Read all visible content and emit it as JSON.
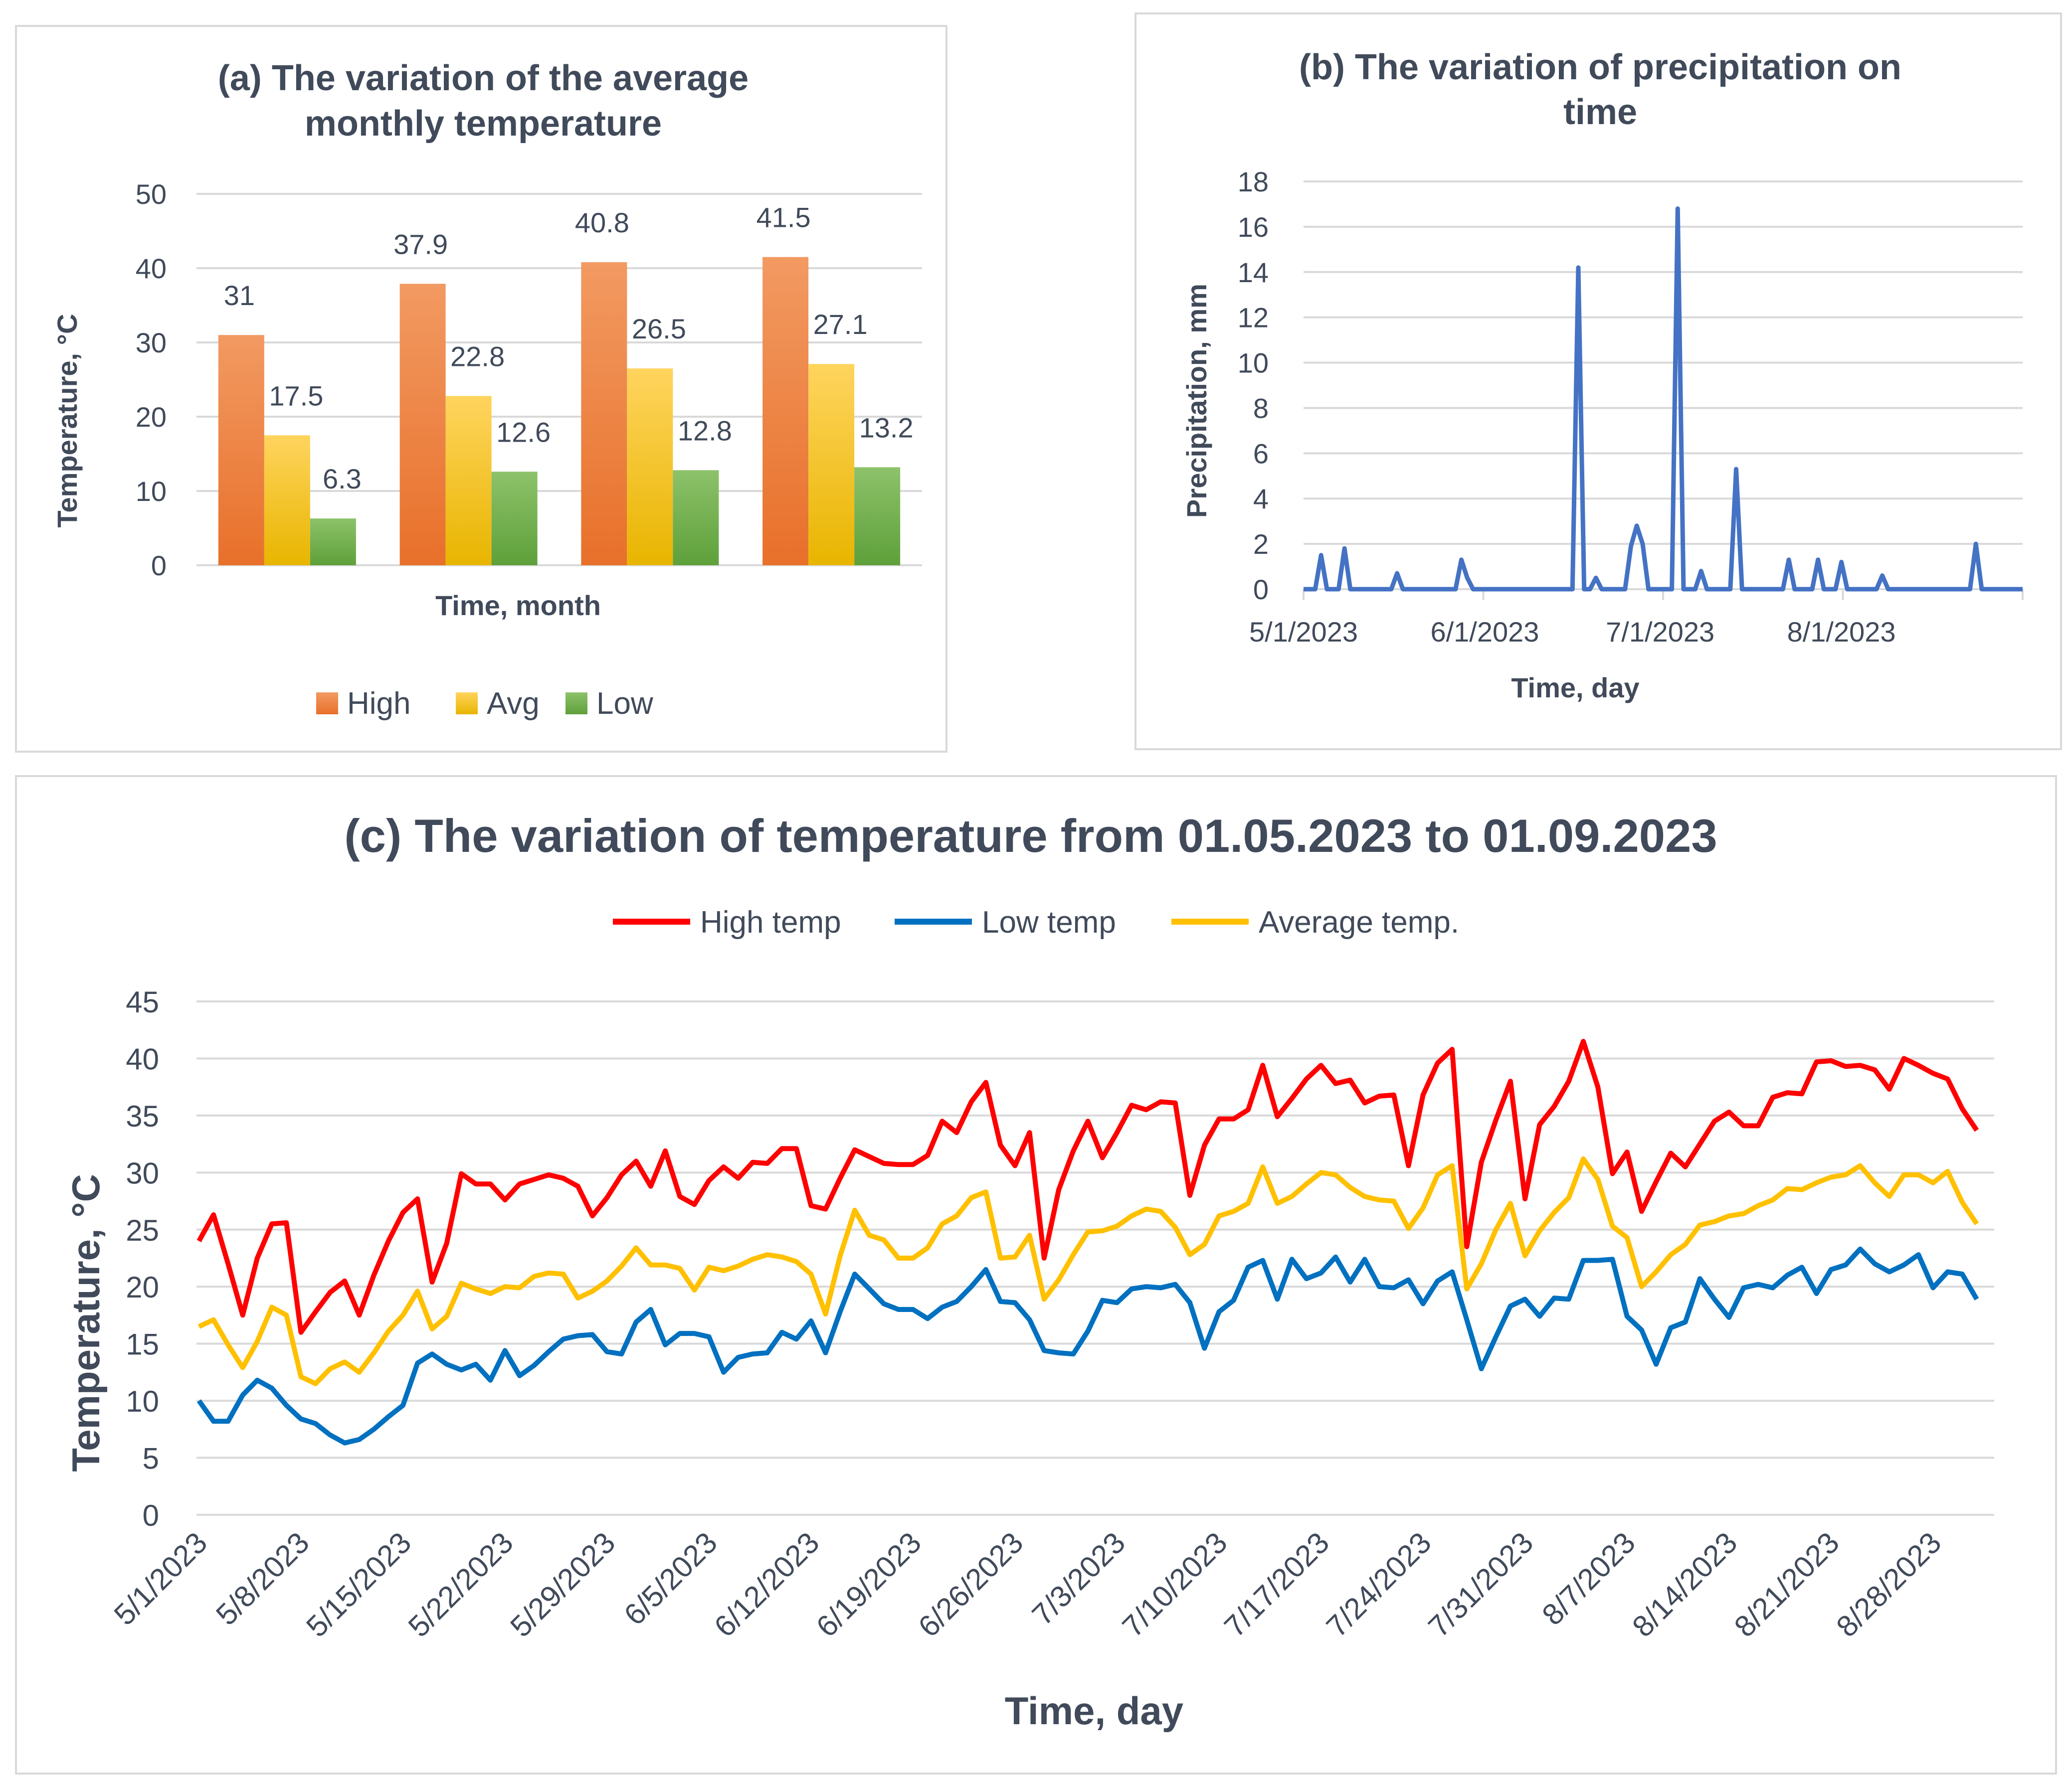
{
  "chart_data": [
    {
      "type": "bar",
      "title_lines": [
        "(a) The variation of the average",
        "monthly temperature"
      ],
      "ylabel": "Temperature, °C",
      "xlabel": "Time, month",
      "ylim": [
        0,
        50
      ],
      "yticks": [
        0,
        10,
        20,
        30,
        40,
        50
      ],
      "categories": [
        "",
        "",
        "",
        ""
      ],
      "series": [
        {
          "name": "High",
          "values": [
            31,
            37.9,
            40.8,
            41.5
          ],
          "labels": [
            "31",
            "37.9",
            "40.8",
            "41.5"
          ]
        },
        {
          "name": "Avg",
          "values": [
            17.5,
            22.8,
            26.5,
            27.1
          ],
          "labels": [
            "17.5",
            "22.8",
            "26.5",
            "27.1"
          ]
        },
        {
          "name": "Low",
          "values": [
            6.3,
            12.6,
            12.8,
            13.2
          ],
          "labels": [
            "6.3",
            "12.6",
            "12.8",
            "13.2"
          ]
        }
      ],
      "colors": {
        "High": [
          "#f29a62",
          "#e8702a"
        ],
        "Avg": [
          "#ffd45e",
          "#e8b500"
        ],
        "Low": [
          "#8dc26a",
          "#5ea03a"
        ]
      },
      "legend": "bottom"
    },
    {
      "type": "line",
      "title_lines": [
        "(b) The variation of precipitation on",
        "time"
      ],
      "ylabel": "Precipitation, mm",
      "xlabel": "Time, day",
      "ylim": [
        0,
        18
      ],
      "yticks": [
        0,
        2,
        4,
        6,
        8,
        10,
        12,
        14,
        16,
        18
      ],
      "x_start": "5/1/2023",
      "n_days": 123,
      "xticks": [
        {
          "day": 0,
          "label": "5/1/2023"
        },
        {
          "day": 31,
          "label": "6/1/2023"
        },
        {
          "day": 61,
          "label": "7/1/2023"
        },
        {
          "day": 92,
          "label": "8/1/2023"
        }
      ],
      "color": "#4472c4",
      "series": [
        {
          "name": "Precipitation",
          "events": [
            [
              3,
              1.5
            ],
            [
              7,
              1.8
            ],
            [
              16,
              0.7
            ],
            [
              27,
              1.3
            ],
            [
              28,
              0.5
            ],
            [
              47,
              14.2
            ],
            [
              50,
              0.5
            ],
            [
              56,
              1.9
            ],
            [
              57,
              2.8
            ],
            [
              58,
              2.0
            ],
            [
              64,
              16.8
            ],
            [
              68,
              0.8
            ],
            [
              74,
              5.3
            ],
            [
              83,
              1.3
            ],
            [
              88,
              1.3
            ],
            [
              92,
              1.2
            ],
            [
              99,
              0.6
            ],
            [
              115,
              2.0
            ]
          ]
        }
      ]
    },
    {
      "type": "line",
      "title": "(c) The variation of temperature from 01.05.2023 to 01.09.2023",
      "ylabel": "Temperature, °C",
      "xlabel": "Time, day",
      "ylim": [
        0,
        45
      ],
      "yticks": [
        0,
        5,
        10,
        15,
        20,
        25,
        30,
        35,
        40,
        45
      ],
      "x_start": "5/1/2023",
      "xticks": [
        {
          "day": 0,
          "label": "5/1/2023"
        },
        {
          "day": 7,
          "label": "5/8/2023"
        },
        {
          "day": 14,
          "label": "5/15/2023"
        },
        {
          "day": 21,
          "label": "5/22/2023"
        },
        {
          "day": 28,
          "label": "5/29/2023"
        },
        {
          "day": 35,
          "label": "6/5/2023"
        },
        {
          "day": 42,
          "label": "6/12/2023"
        },
        {
          "day": 49,
          "label": "6/19/2023"
        },
        {
          "day": 56,
          "label": "6/26/2023"
        },
        {
          "day": 63,
          "label": "7/3/2023"
        },
        {
          "day": 70,
          "label": "7/10/2023"
        },
        {
          "day": 77,
          "label": "7/17/2023"
        },
        {
          "day": 84,
          "label": "7/24/2023"
        },
        {
          "day": 91,
          "label": "7/31/2023"
        },
        {
          "day": 98,
          "label": "8/7/2023"
        },
        {
          "day": 105,
          "label": "8/14/2023"
        },
        {
          "day": 112,
          "label": "8/21/2023"
        },
        {
          "day": 119,
          "label": "8/28/2023"
        }
      ],
      "legend": "top",
      "series": [
        {
          "name": "High temp",
          "color": "#ff0000",
          "values": [
            24,
            26.3,
            22,
            17.5,
            22.5,
            25.5,
            25.6,
            16,
            17.8,
            19.5,
            20.5,
            17.5,
            21,
            24,
            26.5,
            27.7,
            20.4,
            23.8,
            29.9,
            29,
            29,
            27.6,
            29,
            29.4,
            29.8,
            29.5,
            28.8,
            26.2,
            27.8,
            29.8,
            31,
            28.8,
            31.9,
            27.9,
            27.2,
            29.3,
            30.5,
            29.5,
            30.9,
            30.8,
            32.1,
            32.1,
            27.1,
            26.8,
            29.5,
            32,
            31.4,
            30.8,
            30.7,
            30.7,
            31.5,
            34.5,
            33.5,
            36.2,
            37.9,
            32.4,
            30.6,
            33.5,
            22.5,
            28.5,
            31.9,
            34.5,
            31.3,
            33.5,
            35.9,
            35.5,
            36.2,
            36.1,
            28,
            32.4,
            34.7,
            34.7,
            35.5,
            39.4,
            34.9,
            36.5,
            38.2,
            39.4,
            37.8,
            38.1,
            36.1,
            36.7,
            36.8,
            30.6,
            36.8,
            39.6,
            40.8,
            23.5,
            30.9,
            34.6,
            38,
            27.7,
            34.2,
            35.8,
            38,
            41.5,
            37.5,
            29.9,
            31.8,
            26.6,
            29.2,
            31.7,
            30.5,
            32.5,
            34.5,
            35.3,
            34.1,
            34.1,
            36.6,
            37,
            36.9,
            39.7,
            39.8,
            39.3,
            39.4,
            39,
            37.3,
            40,
            39.4,
            38.7,
            38.2,
            35.6,
            33.7
          ]
        },
        {
          "name": "Low temp",
          "color": "#0070c0",
          "values": [
            10,
            8.2,
            8.2,
            10.5,
            11.8,
            11.1,
            9.6,
            8.4,
            8,
            7,
            6.3,
            6.6,
            7.5,
            8.6,
            9.6,
            13.3,
            14.1,
            13.2,
            12.7,
            13.2,
            11.8,
            14.4,
            12.2,
            13.1,
            14.3,
            15.4,
            15.7,
            15.8,
            14.3,
            14.1,
            16.9,
            18,
            14.9,
            15.9,
            15.9,
            15.6,
            12.5,
            13.8,
            14.1,
            14.2,
            16,
            15.4,
            17,
            14.2,
            17.8,
            21.1,
            19.8,
            18.5,
            18,
            18,
            17.2,
            18.2,
            18.7,
            20,
            21.5,
            18.7,
            18.6,
            17.1,
            14.4,
            14.2,
            14.1,
            16.1,
            18.8,
            18.6,
            19.8,
            20,
            19.9,
            20.2,
            18.6,
            14.6,
            17.8,
            18.8,
            21.7,
            22.3,
            18.9,
            22.4,
            20.7,
            21.2,
            22.6,
            20.4,
            22.4,
            20,
            19.9,
            20.6,
            18.5,
            20.5,
            21.3,
            17.1,
            12.8,
            15.6,
            18.3,
            18.9,
            17.4,
            19,
            18.9,
            22.3,
            22.3,
            22.4,
            17.4,
            16.2,
            13.2,
            16.4,
            16.9,
            20.7,
            18.9,
            17.3,
            19.9,
            20.2,
            19.9,
            21,
            21.7,
            19.4,
            21.5,
            21.9,
            23.3,
            22,
            21.3,
            21.9,
            22.8,
            19.9,
            21.3,
            21.1,
            18.9
          ]
        },
        {
          "name": "Average temp.",
          "color": "#ffc000",
          "values": [
            16.5,
            17.1,
            14.9,
            12.9,
            15.2,
            18.2,
            17.5,
            12.1,
            11.5,
            12.8,
            13.4,
            12.5,
            14.2,
            16.1,
            17.5,
            19.6,
            16.3,
            17.4,
            20.3,
            19.8,
            19.4,
            20,
            19.9,
            20.9,
            21.2,
            21.1,
            19,
            19.6,
            20.5,
            21.8,
            23.4,
            21.9,
            21.9,
            21.6,
            19.7,
            21.7,
            21.4,
            21.8,
            22.4,
            22.8,
            22.6,
            22.2,
            21.1,
            17.6,
            22.7,
            26.7,
            24.5,
            24.1,
            22.5,
            22.5,
            23.4,
            25.5,
            26.2,
            27.8,
            28.3,
            22.5,
            22.6,
            24.5,
            18.9,
            20.6,
            22.8,
            24.8,
            24.9,
            25.3,
            26.2,
            26.8,
            26.6,
            25.2,
            22.8,
            23.7,
            26.2,
            26.6,
            27.3,
            30.5,
            27.3,
            27.9,
            29,
            30,
            29.8,
            28.7,
            27.9,
            27.6,
            27.5,
            25.1,
            26.9,
            29.8,
            30.6,
            19.8,
            22,
            25,
            27.3,
            22.7,
            24.9,
            26.5,
            27.8,
            31.2,
            29.4,
            25.3,
            24.3,
            20,
            21.3,
            22.8,
            23.7,
            25.4,
            25.7,
            26.2,
            26.4,
            27.1,
            27.6,
            28.6,
            28.5,
            29.1,
            29.6,
            29.8,
            30.6,
            29.1,
            27.9,
            29.8,
            29.8,
            29.1,
            30.1,
            27.4,
            25.5
          ]
        }
      ]
    }
  ]
}
